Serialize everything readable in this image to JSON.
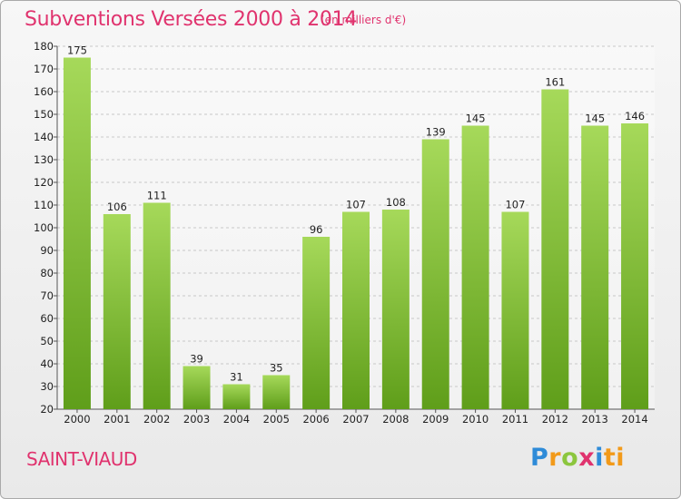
{
  "header": {
    "title": "Subventions Versées 2000 à 2014",
    "unit_note": "(en milliers d'€)"
  },
  "footer": {
    "commune": "SAINT-VIAUD",
    "logo_letters": [
      "P",
      "r",
      "o",
      "x",
      "i",
      "ti"
    ]
  },
  "colors": {
    "accent": "#e0336e",
    "bar_light": "#a6d95a",
    "bar_dark": "#5f9e1a",
    "grid": "#c8c8c8"
  },
  "chart_data": {
    "type": "bar",
    "title": "Subventions Versées 2000 à 2014",
    "subtitle": "(en milliers d'€)",
    "xlabel": "",
    "ylabel": "",
    "categories": [
      "2000",
      "2001",
      "2002",
      "2003",
      "2004",
      "2005",
      "2006",
      "2007",
      "2008",
      "2009",
      "2010",
      "2011",
      "2012",
      "2013",
      "2014"
    ],
    "values": [
      175,
      106,
      111,
      39,
      31,
      35,
      96,
      107,
      108,
      139,
      145,
      107,
      161,
      145,
      146
    ],
    "ylim": [
      20,
      180
    ],
    "yticks": [
      20,
      30,
      40,
      50,
      60,
      70,
      80,
      90,
      100,
      110,
      120,
      130,
      140,
      150,
      160,
      170,
      180
    ],
    "grid": true,
    "legend": "none"
  }
}
